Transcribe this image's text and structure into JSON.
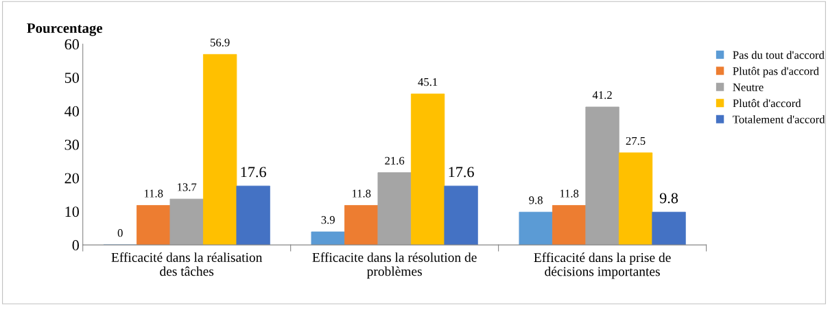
{
  "chart_data": {
    "type": "bar",
    "ylabel": "Pourcentage",
    "categories": [
      "Efficacité dans la réalisation des tâches",
      "Efficacite dans la résolution de problèmes",
      "Efficacité dans la prise de décisions importantes"
    ],
    "series": [
      {
        "name": "Pas du tout d'accord",
        "color": "#5b9bd5",
        "values": [
          0,
          3.9,
          9.8
        ]
      },
      {
        "name": "Plutôt pas d'accord",
        "color": "#ed7d31",
        "values": [
          11.8,
          11.8,
          11.8
        ]
      },
      {
        "name": "Neutre",
        "color": "#a5a5a5",
        "values": [
          13.7,
          21.6,
          41.2
        ]
      },
      {
        "name": "Plutôt d'accord",
        "color": "#ffc000",
        "values": [
          56.9,
          45.1,
          27.5
        ]
      },
      {
        "name": "Totalement d'accord",
        "color": "#4472c4",
        "values": [
          17.6,
          17.6,
          9.8
        ]
      }
    ],
    "ylim": [
      0,
      60
    ],
    "yticks": [
      0,
      10,
      20,
      30,
      40,
      50,
      60
    ],
    "grid": false,
    "legend": "right",
    "data_labels": true
  }
}
